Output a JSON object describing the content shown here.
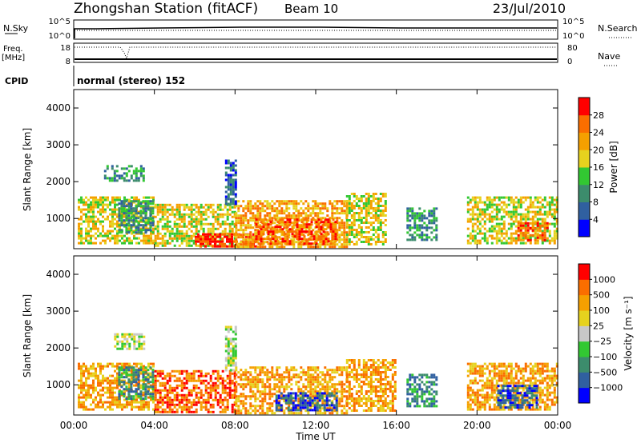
{
  "header": {
    "station": "Zhongshan Station (fitACF)",
    "beam": "Beam 10",
    "date": "23/Jul/2010"
  },
  "strip_nsky": {
    "left_label": "N.Sky",
    "right_label": "N.Search",
    "left_ticks": [
      "10^5",
      "10^0"
    ],
    "right_ticks": [
      "10^5",
      "10^0"
    ]
  },
  "strip_freq": {
    "left_label_1": "Freq.",
    "left_label_2": "[MHz]",
    "right_label": "Nave",
    "left_ticks": [
      "18",
      "8"
    ],
    "right_ticks": [
      "80",
      "0"
    ]
  },
  "strip_cpid": {
    "label": "CPID",
    "mode_text": "normal (stereo) 152"
  },
  "colors": {
    "power_scale": [
      "#0000ff",
      "#3060a0",
      "#3c8c6c",
      "#32c832",
      "#e6d21e",
      "#f5a000",
      "#fa6e00",
      "#ff0000"
    ],
    "velocity_scale": [
      "#ff0000",
      "#fa6e00",
      "#f5a000",
      "#e6d21e",
      "#c8c8c8",
      "#32c832",
      "#3c8c6c",
      "#3060a0",
      "#0000ff"
    ]
  },
  "chart_data": [
    {
      "type": "heatmap",
      "name": "power",
      "ylabel": "Slant Range [km]",
      "xlabel": "",
      "x_ticks": [
        "00:00",
        "04:00",
        "08:00",
        "12:00",
        "16:00",
        "20:00",
        "00:00"
      ],
      "y_ticks": [
        "1000",
        "2000",
        "3000",
        "4000"
      ],
      "x_range_hours": [
        0,
        24
      ],
      "y_range_km": [
        180,
        4500
      ],
      "colorbar": {
        "label": "Power [dB]",
        "ticks": [
          "4",
          "8",
          "12",
          "16",
          "20",
          "24",
          "28"
        ]
      },
      "regions": [
        {
          "t0": 0.2,
          "t1": 4.0,
          "r0": 300,
          "r1": 1600,
          "level": 4
        },
        {
          "t0": 2.2,
          "t1": 3.9,
          "r0": 600,
          "r1": 1500,
          "level": 2
        },
        {
          "t0": 1.5,
          "t1": 3.5,
          "r0": 2000,
          "r1": 2450,
          "level": 2
        },
        {
          "t0": 4.0,
          "t1": 8.0,
          "r0": 250,
          "r1": 1400,
          "level": 4
        },
        {
          "t0": 6.0,
          "t1": 9.0,
          "r0": 250,
          "r1": 600,
          "level": 7
        },
        {
          "t0": 8.0,
          "t1": 13.5,
          "r0": 250,
          "r1": 1500,
          "level": 5
        },
        {
          "t0": 9.0,
          "t1": 13.0,
          "r0": 300,
          "r1": 1000,
          "level": 6
        },
        {
          "t0": 13.5,
          "t1": 15.5,
          "r0": 300,
          "r1": 1700,
          "level": 4
        },
        {
          "t0": 16.5,
          "t1": 18.0,
          "r0": 400,
          "r1": 1300,
          "level": 2
        },
        {
          "t0": 19.5,
          "t1": 24.0,
          "r0": 300,
          "r1": 1600,
          "level": 4
        },
        {
          "t0": 22.0,
          "t1": 23.5,
          "r0": 400,
          "r1": 900,
          "level": 6
        },
        {
          "t0": 7.5,
          "t1": 8.0,
          "r0": 1400,
          "r1": 2600,
          "level": 1
        }
      ]
    },
    {
      "type": "heatmap",
      "name": "velocity",
      "ylabel": "Slant Range [km]",
      "xlabel": "Time UT",
      "x_ticks": [
        "00:00",
        "04:00",
        "08:00",
        "12:00",
        "16:00",
        "20:00",
        "00:00"
      ],
      "y_ticks": [
        "1000",
        "2000",
        "3000",
        "4000"
      ],
      "x_range_hours": [
        0,
        24
      ],
      "y_range_km": [
        180,
        4500
      ],
      "colorbar": {
        "label": "Velocity [m s⁻¹]",
        "ticks": [
          "1000",
          "500",
          "100",
          "25",
          "−25",
          "−100",
          "−500",
          "−1000"
        ]
      },
      "regions": [
        {
          "t0": 0.2,
          "t1": 4.0,
          "r0": 300,
          "r1": 1600,
          "level": 2
        },
        {
          "t0": 2.2,
          "t1": 3.9,
          "r0": 600,
          "r1": 1500,
          "level": 6
        },
        {
          "t0": 2.0,
          "t1": 3.5,
          "r0": 1950,
          "r1": 2400,
          "level": 4
        },
        {
          "t0": 4.0,
          "t1": 8.0,
          "r0": 250,
          "r1": 1400,
          "level": 1
        },
        {
          "t0": 8.0,
          "t1": 13.5,
          "r0": 250,
          "r1": 1500,
          "level": 2
        },
        {
          "t0": 10.0,
          "t1": 13.0,
          "r0": 300,
          "r1": 800,
          "level": 7
        },
        {
          "t0": 13.5,
          "t1": 16.0,
          "r0": 300,
          "r1": 1700,
          "level": 2
        },
        {
          "t0": 16.5,
          "t1": 18.0,
          "r0": 400,
          "r1": 1300,
          "level": 6
        },
        {
          "t0": 19.5,
          "t1": 24.0,
          "r0": 300,
          "r1": 1600,
          "level": 2
        },
        {
          "t0": 21.0,
          "t1": 23.0,
          "r0": 400,
          "r1": 1000,
          "level": 7
        },
        {
          "t0": 7.5,
          "t1": 8.0,
          "r0": 1400,
          "r1": 2600,
          "level": 4
        }
      ]
    }
  ]
}
